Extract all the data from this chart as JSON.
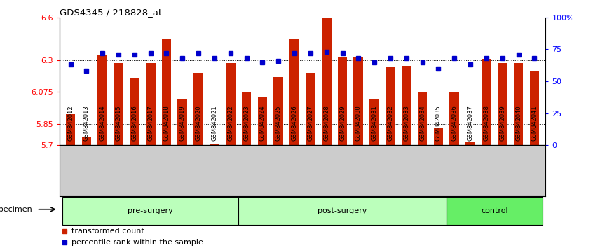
{
  "title": "GDS4345 / 218828_at",
  "samples": [
    "GSM842012",
    "GSM842013",
    "GSM842014",
    "GSM842015",
    "GSM842016",
    "GSM842017",
    "GSM842018",
    "GSM842019",
    "GSM842020",
    "GSM842021",
    "GSM842022",
    "GSM842023",
    "GSM842024",
    "GSM842025",
    "GSM842026",
    "GSM842027",
    "GSM842028",
    "GSM842029",
    "GSM842030",
    "GSM842031",
    "GSM842032",
    "GSM842033",
    "GSM842034",
    "GSM842035",
    "GSM842036",
    "GSM842037",
    "GSM842038",
    "GSM842039",
    "GSM842040",
    "GSM842041"
  ],
  "bar_values": [
    5.92,
    5.76,
    6.33,
    6.28,
    6.17,
    6.28,
    6.45,
    6.02,
    6.21,
    5.71,
    6.28,
    6.075,
    6.04,
    6.18,
    6.45,
    6.21,
    6.6,
    6.32,
    6.32,
    6.02,
    6.25,
    6.26,
    6.075,
    5.82,
    6.07,
    5.72,
    6.31,
    6.28,
    6.28,
    6.22
  ],
  "percentile_values": [
    63,
    58,
    72,
    71,
    71,
    72,
    72,
    68,
    72,
    68,
    72,
    68,
    65,
    66,
    72,
    72,
    73,
    72,
    68,
    65,
    68,
    68,
    65,
    60,
    68,
    63,
    68,
    68,
    71,
    68
  ],
  "group_labels": [
    "pre-surgery",
    "post-surgery",
    "control"
  ],
  "group_starts": [
    0,
    11,
    24
  ],
  "group_ends": [
    11,
    24,
    30
  ],
  "group_colors": [
    "#bbffbb",
    "#bbffbb",
    "#66ee66"
  ],
  "ymin": 5.7,
  "ymax": 6.6,
  "yticks": [
    5.7,
    5.85,
    6.075,
    6.3,
    6.6
  ],
  "ytick_labels": [
    "5.7",
    "5.85",
    "6.075",
    "6.3",
    "6.6"
  ],
  "right_yticks": [
    0,
    25,
    50,
    75,
    100
  ],
  "right_ytick_labels": [
    "0",
    "25",
    "50",
    "75",
    "100%"
  ],
  "bar_color": "#cc2200",
  "dot_color": "#0000cc",
  "bg_color": "#ffffff",
  "tick_label_bg": "#cccccc",
  "specimen_label": "specimen",
  "legend_bar_label": "transformed count",
  "legend_dot_label": "percentile rank within the sample"
}
